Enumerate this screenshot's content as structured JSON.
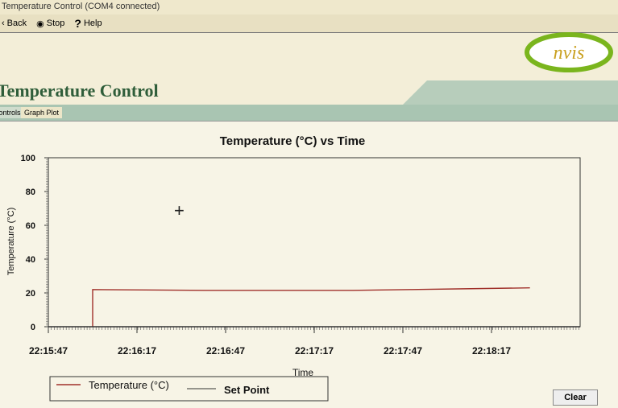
{
  "window": {
    "title": "Temperature Control (COM4 connected)"
  },
  "toolbar": {
    "back": "Back",
    "stop": "Stop",
    "help": "Help"
  },
  "logo": {
    "text": "nvis",
    "color": "#7ab51d"
  },
  "app": {
    "title": "Temperature Control"
  },
  "tabs": [
    {
      "label": "Controls"
    },
    {
      "label": "Graph Plot",
      "active": true
    }
  ],
  "buttons": {
    "clear": "Clear"
  },
  "chart_data": {
    "type": "line",
    "title": "Temperature (°C) vs Time",
    "xlabel": "Time",
    "ylabel": "Temperature (°C)",
    "ylim": [
      0,
      100
    ],
    "yticks": [
      "0",
      "20",
      "40",
      "60",
      "80",
      "100"
    ],
    "xticks": [
      "22:15:47",
      "22:16:17",
      "22:16:47",
      "22:17:17",
      "22:17:47",
      "22:18:17"
    ],
    "xlim": [
      "22:15:47",
      "22:18:47"
    ],
    "legend_position": "bottom-left",
    "series": [
      {
        "name": "Temperature (°C)",
        "color": "#a0302a",
        "x": [
          "22:16:02",
          "22:16:02",
          "22:16:40",
          "22:17:10",
          "22:17:30",
          "22:17:50",
          "22:18:10",
          "22:18:30"
        ],
        "y": [
          0,
          22,
          21.5,
          21.5,
          21.5,
          22,
          22.5,
          23
        ]
      },
      {
        "name": "Set Point",
        "color": "#333333",
        "x": [
          "22:15:47",
          "22:18:47"
        ],
        "y": [
          0,
          0
        ]
      }
    ]
  }
}
